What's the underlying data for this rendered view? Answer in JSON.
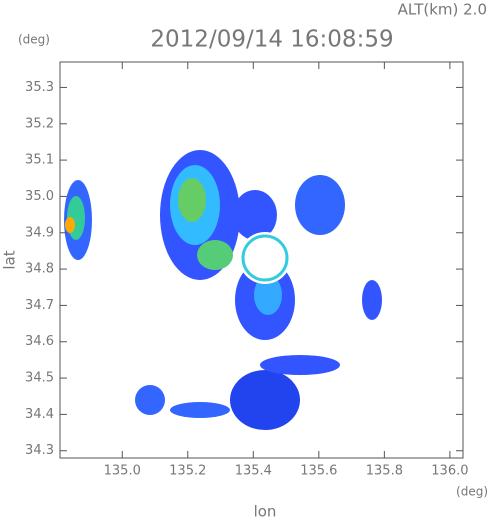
{
  "chart_data": {
    "type": "radar-map",
    "title": "2012/09/14 16:08:59",
    "altitude_label": "ALT(km) 2.0",
    "x_label": "lon",
    "y_label": "lat",
    "x_unit": "(deg)",
    "y_unit": "(deg)",
    "xlim": [
      134.81,
      136.04
    ],
    "ylim": [
      34.28,
      35.37
    ],
    "xticks": [
      {
        "value": 135,
        "label": "135.0"
      },
      135.2,
      135.4,
      135.6,
      135.8,
      {
        "value": 136,
        "label": "136.0"
      }
    ],
    "yticks": [
      35.3,
      35.2,
      35.1,
      {
        "value": 35,
        "label": "35.0"
      },
      34.9,
      34.8,
      34.7,
      34.6,
      34.5,
      34.4,
      34.3
    ]
  }
}
